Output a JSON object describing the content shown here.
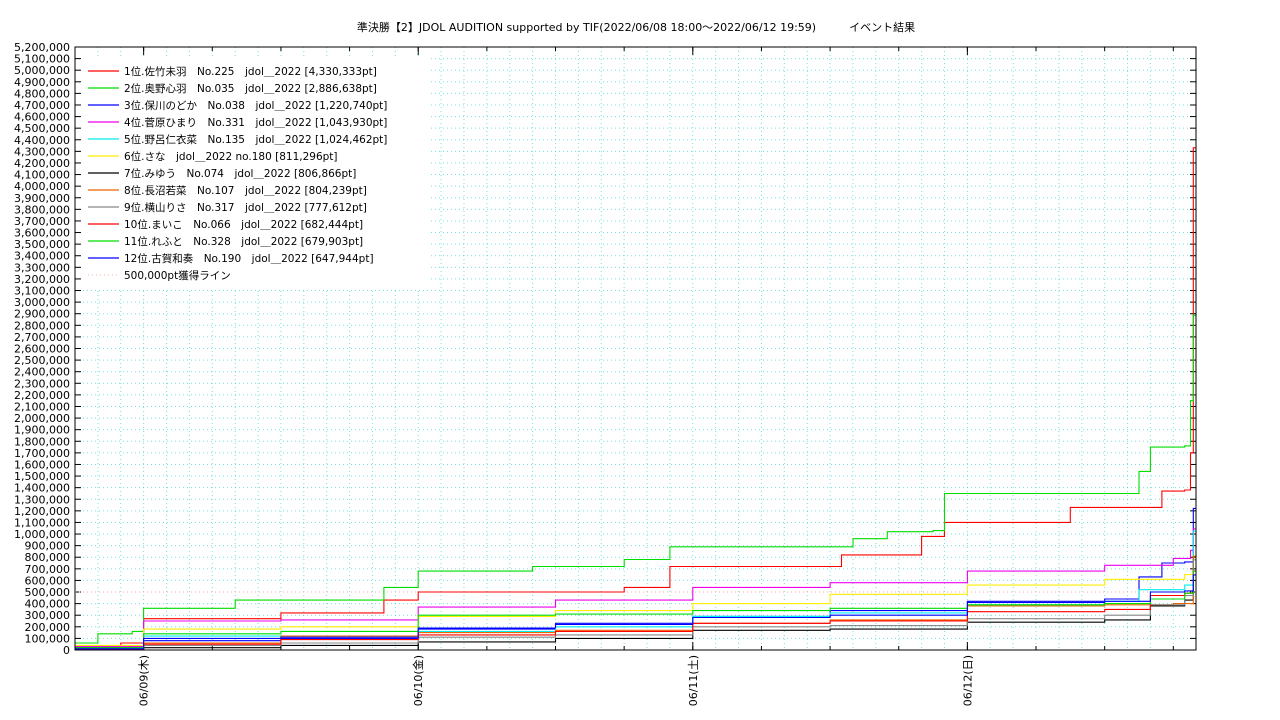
{
  "chart_data": {
    "type": "line",
    "title": "準決勝【2】JDOL AUDITION supported by TIF(2022/06/08 18:00～2022/06/12 19:59)　　　イベント結果",
    "xlabel": "",
    "ylabel": "",
    "x_range": [
      "2022-06-08 18:00",
      "2022-06-12 19:59"
    ],
    "x_ticks": [
      {
        "x": "2022-06-09 00:00",
        "label": "06/09(木)"
      },
      {
        "x": "2022-06-10 00:00",
        "label": "06/10(金)"
      },
      {
        "x": "2022-06-11 00:00",
        "label": "06/11(土)"
      },
      {
        "x": "2022-06-12 00:00",
        "label": "06/12(日)"
      }
    ],
    "ylim": [
      0,
      5200000
    ],
    "y_ticks": [
      "0",
      "100,000",
      "200,000",
      "300,000",
      "400,000",
      "500,000",
      "600,000",
      "700,000",
      "800,000",
      "900,000",
      "1,000,000",
      "1,100,000",
      "1,200,000",
      "1,300,000",
      "1,400,000",
      "1,500,000",
      "1,600,000",
      "1,700,000",
      "1,800,000",
      "1,900,000",
      "2,000,000",
      "2,100,000",
      "2,200,000",
      "2,300,000",
      "2,400,000",
      "2,500,000",
      "2,600,000",
      "2,700,000",
      "2,800,000",
      "2,900,000",
      "3,000,000",
      "3,100,000",
      "3,200,000",
      "3,300,000",
      "3,400,000",
      "3,500,000",
      "3,600,000",
      "3,700,000",
      "3,800,000",
      "3,900,000",
      "4,000,000",
      "4,100,000",
      "4,200,000",
      "4,300,000",
      "4,400,000",
      "4,500,000",
      "4,600,000",
      "4,700,000",
      "4,800,000",
      "4,900,000",
      "5,000,000",
      "5,100,000",
      "5,200,000"
    ],
    "grid": true,
    "legend_position": "top-left",
    "threshold": {
      "name": "500,000pt獲得ライン",
      "y": 500000,
      "color": "#ffaaaa"
    },
    "series": [
      {
        "name": "1位.佐竹未羽　No.225　jdol＿2022 [4,330,333pt]",
        "color": "#ff0000",
        "points": [
          [
            "2022-06-08 18:00",
            20000
          ],
          [
            "2022-06-08 22:00",
            60000
          ],
          [
            "2022-06-09 00:00",
            270000
          ],
          [
            "2022-06-09 06:00",
            270000
          ],
          [
            "2022-06-09 12:00",
            320000
          ],
          [
            "2022-06-09 20:00",
            320000
          ],
          [
            "2022-06-09 21:00",
            430000
          ],
          [
            "2022-06-10 00:00",
            500000
          ],
          [
            "2022-06-10 18:00",
            540000
          ],
          [
            "2022-06-10 22:00",
            720000
          ],
          [
            "2022-06-11 12:00",
            720000
          ],
          [
            "2022-06-11 13:00",
            820000
          ],
          [
            "2022-06-11 19:00",
            820000
          ],
          [
            "2022-06-11 20:00",
            980000
          ],
          [
            "2022-06-11 22:00",
            1100000
          ],
          [
            "2022-06-12 08:00",
            1100000
          ],
          [
            "2022-06-12 09:00",
            1230000
          ],
          [
            "2022-06-12 16:00",
            1230000
          ],
          [
            "2022-06-12 17:00",
            1370000
          ],
          [
            "2022-06-12 19:00",
            1380000
          ],
          [
            "2022-06-12 19:30",
            1700000
          ],
          [
            "2022-06-12 19:45",
            4330333
          ],
          [
            "2022-06-12 19:59",
            4330333
          ]
        ]
      },
      {
        "name": "2位.奥野心羽　No.035　jdol＿2022 [2,886,638pt]",
        "color": "#00dd00",
        "points": [
          [
            "2022-06-08 18:00",
            60000
          ],
          [
            "2022-06-08 20:00",
            140000
          ],
          [
            "2022-06-08 23:00",
            160000
          ],
          [
            "2022-06-09 00:00",
            360000
          ],
          [
            "2022-06-09 06:00",
            360000
          ],
          [
            "2022-06-09 08:00",
            430000
          ],
          [
            "2022-06-09 20:00",
            430000
          ],
          [
            "2022-06-09 21:00",
            540000
          ],
          [
            "2022-06-10 00:00",
            680000
          ],
          [
            "2022-06-10 10:00",
            720000
          ],
          [
            "2022-06-10 18:00",
            780000
          ],
          [
            "2022-06-10 22:00",
            890000
          ],
          [
            "2022-06-11 12:00",
            890000
          ],
          [
            "2022-06-11 14:00",
            960000
          ],
          [
            "2022-06-11 17:00",
            1020000
          ],
          [
            "2022-06-11 21:00",
            1030000
          ],
          [
            "2022-06-11 22:00",
            1350000
          ],
          [
            "2022-06-12 14:00",
            1350000
          ],
          [
            "2022-06-12 15:00",
            1540000
          ],
          [
            "2022-06-12 16:00",
            1750000
          ],
          [
            "2022-06-12 19:00",
            1760000
          ],
          [
            "2022-06-12 19:30",
            2150000
          ],
          [
            "2022-06-12 19:45",
            2886638
          ],
          [
            "2022-06-12 19:59",
            2886638
          ]
        ]
      },
      {
        "name": "3位.保川のどか　No.038　jdol＿2022 [1,220,740pt]",
        "color": "#0000ff",
        "points": [
          [
            "2022-06-08 18:00",
            20000
          ],
          [
            "2022-06-09 00:00",
            80000
          ],
          [
            "2022-06-09 12:00",
            100000
          ],
          [
            "2022-06-10 00:00",
            180000
          ],
          [
            "2022-06-10 12:00",
            230000
          ],
          [
            "2022-06-11 00:00",
            290000
          ],
          [
            "2022-06-11 12:00",
            340000
          ],
          [
            "2022-06-12 00:00",
            420000
          ],
          [
            "2022-06-12 12:00",
            440000
          ],
          [
            "2022-06-12 15:00",
            630000
          ],
          [
            "2022-06-12 17:00",
            750000
          ],
          [
            "2022-06-12 19:00",
            760000
          ],
          [
            "2022-06-12 19:45",
            1220740
          ],
          [
            "2022-06-12 19:59",
            1220740
          ]
        ]
      },
      {
        "name": "4位.菅原ひまり　No.331　jdol＿2022 [1,043,930pt]",
        "color": "#ee00ee",
        "points": [
          [
            "2022-06-08 18:00",
            30000
          ],
          [
            "2022-06-09 00:00",
            250000
          ],
          [
            "2022-06-09 12:00",
            260000
          ],
          [
            "2022-06-10 00:00",
            370000
          ],
          [
            "2022-06-10 12:00",
            430000
          ],
          [
            "2022-06-11 00:00",
            540000
          ],
          [
            "2022-06-11 12:00",
            580000
          ],
          [
            "2022-06-12 00:00",
            680000
          ],
          [
            "2022-06-12 12:00",
            730000
          ],
          [
            "2022-06-12 18:00",
            790000
          ],
          [
            "2022-06-12 19:30",
            860000
          ],
          [
            "2022-06-12 19:45",
            1043930
          ],
          [
            "2022-06-12 19:59",
            1043930
          ]
        ]
      },
      {
        "name": "5位.野呂仁衣菜　No.135　jdol＿2022 [1,024,462pt]",
        "color": "#00eeee",
        "points": [
          [
            "2022-06-08 18:00",
            10000
          ],
          [
            "2022-06-09 00:00",
            120000
          ],
          [
            "2022-06-10 00:00",
            160000
          ],
          [
            "2022-06-10 12:00",
            200000
          ],
          [
            "2022-06-11 00:00",
            290000
          ],
          [
            "2022-06-11 12:00",
            320000
          ],
          [
            "2022-06-12 00:00",
            390000
          ],
          [
            "2022-06-12 12:00",
            420000
          ],
          [
            "2022-06-12 15:00",
            520000
          ],
          [
            "2022-06-12 19:00",
            560000
          ],
          [
            "2022-06-12 19:45",
            1024462
          ],
          [
            "2022-06-12 19:59",
            1024462
          ]
        ]
      },
      {
        "name": "6位.さな　jdol＿2022 no.180 [811,296pt]",
        "color": "#ffee00",
        "points": [
          [
            "2022-06-08 18:00",
            40000
          ],
          [
            "2022-06-09 00:00",
            180000
          ],
          [
            "2022-06-09 12:00",
            200000
          ],
          [
            "2022-06-10 00:00",
            290000
          ],
          [
            "2022-06-10 12:00",
            340000
          ],
          [
            "2022-06-11 00:00",
            400000
          ],
          [
            "2022-06-11 12:00",
            480000
          ],
          [
            "2022-06-12 00:00",
            560000
          ],
          [
            "2022-06-12 12:00",
            610000
          ],
          [
            "2022-06-12 19:00",
            650000
          ],
          [
            "2022-06-12 19:45",
            811296
          ],
          [
            "2022-06-12 19:59",
            811296
          ]
        ]
      },
      {
        "name": "7位.みゆう　No.074　jdol＿2022 [806,866pt]",
        "color": "#000000",
        "points": [
          [
            "2022-06-08 18:00",
            5000
          ],
          [
            "2022-06-09 00:00",
            20000
          ],
          [
            "2022-06-09 12:00",
            40000
          ],
          [
            "2022-06-10 00:00",
            70000
          ],
          [
            "2022-06-10 12:00",
            100000
          ],
          [
            "2022-06-11 00:00",
            170000
          ],
          [
            "2022-06-11 12:00",
            180000
          ],
          [
            "2022-06-12 00:00",
            240000
          ],
          [
            "2022-06-12 12:00",
            260000
          ],
          [
            "2022-06-12 16:00",
            380000
          ],
          [
            "2022-06-12 19:00",
            430000
          ],
          [
            "2022-06-12 19:45",
            806866
          ],
          [
            "2022-06-12 19:59",
            806866
          ]
        ]
      },
      {
        "name": "8位.長沼若菜　No.107　jdol＿2022 [804,239pt]",
        "color": "#ee6600",
        "points": [
          [
            "2022-06-08 18:00",
            10000
          ],
          [
            "2022-06-09 00:00",
            60000
          ],
          [
            "2022-06-09 12:00",
            120000
          ],
          [
            "2022-06-10 00:00",
            150000
          ],
          [
            "2022-06-10 12:00",
            170000
          ],
          [
            "2022-06-11 00:00",
            230000
          ],
          [
            "2022-06-11 12:00",
            260000
          ],
          [
            "2022-06-12 00:00",
            380000
          ],
          [
            "2022-06-12 12:00",
            390000
          ],
          [
            "2022-06-12 18:00",
            400000
          ],
          [
            "2022-06-12 19:45",
            804239
          ],
          [
            "2022-06-12 19:59",
            804239
          ]
        ]
      },
      {
        "name": "9位.横山りさ　No.317　jdol＿2022 [777,612pt]",
        "color": "#888888",
        "points": [
          [
            "2022-06-08 18:00",
            5000
          ],
          [
            "2022-06-09 00:00",
            40000
          ],
          [
            "2022-06-09 12:00",
            60000
          ],
          [
            "2022-06-10 00:00",
            110000
          ],
          [
            "2022-06-10 12:00",
            130000
          ],
          [
            "2022-06-11 00:00",
            200000
          ],
          [
            "2022-06-11 12:00",
            210000
          ],
          [
            "2022-06-12 00:00",
            270000
          ],
          [
            "2022-06-12 12:00",
            300000
          ],
          [
            "2022-06-12 16:00",
            390000
          ],
          [
            "2022-06-12 19:00",
            470000
          ],
          [
            "2022-06-12 19:45",
            777612
          ],
          [
            "2022-06-12 19:59",
            777612
          ]
        ]
      },
      {
        "name": "10位.まいこ　No.066　jdol＿2022 [682,444pt]",
        "color": "#ff0000",
        "points": [
          [
            "2022-06-08 18:00",
            5000
          ],
          [
            "2022-06-09 00:00",
            50000
          ],
          [
            "2022-06-09 12:00",
            90000
          ],
          [
            "2022-06-10 00:00",
            130000
          ],
          [
            "2022-06-10 12:00",
            160000
          ],
          [
            "2022-06-11 00:00",
            230000
          ],
          [
            "2022-06-11 12:00",
            250000
          ],
          [
            "2022-06-12 00:00",
            330000
          ],
          [
            "2022-06-12 12:00",
            350000
          ],
          [
            "2022-06-12 16:00",
            470000
          ],
          [
            "2022-06-12 19:00",
            490000
          ],
          [
            "2022-06-12 19:45",
            682444
          ],
          [
            "2022-06-12 19:59",
            682444
          ]
        ]
      },
      {
        "name": "11位.れふと　No.328　jdol＿2022 [679,903pt]",
        "color": "#00dd00",
        "points": [
          [
            "2022-06-08 18:00",
            20000
          ],
          [
            "2022-06-09 00:00",
            140000
          ],
          [
            "2022-06-09 12:00",
            160000
          ],
          [
            "2022-06-10 00:00",
            300000
          ],
          [
            "2022-06-10 12:00",
            310000
          ],
          [
            "2022-06-11 00:00",
            340000
          ],
          [
            "2022-06-11 12:00",
            360000
          ],
          [
            "2022-06-12 00:00",
            390000
          ],
          [
            "2022-06-12 12:00",
            400000
          ],
          [
            "2022-06-12 16:00",
            440000
          ],
          [
            "2022-06-12 19:00",
            490000
          ],
          [
            "2022-06-12 19:45",
            679903
          ],
          [
            "2022-06-12 19:59",
            679903
          ]
        ]
      },
      {
        "name": "12位.古賀和奏　No.190　jdol＿2022 [647,944pt]",
        "color": "#0000ff",
        "points": [
          [
            "2022-06-08 18:00",
            10000
          ],
          [
            "2022-06-09 00:00",
            100000
          ],
          [
            "2022-06-09 12:00",
            110000
          ],
          [
            "2022-06-10 00:00",
            190000
          ],
          [
            "2022-06-10 12:00",
            220000
          ],
          [
            "2022-06-11 00:00",
            280000
          ],
          [
            "2022-06-11 12:00",
            300000
          ],
          [
            "2022-06-12 00:00",
            410000
          ],
          [
            "2022-06-12 12:00",
            420000
          ],
          [
            "2022-06-12 16:00",
            500000
          ],
          [
            "2022-06-12 19:00",
            510000
          ],
          [
            "2022-06-12 19:45",
            647944
          ],
          [
            "2022-06-12 19:59",
            647944
          ]
        ]
      }
    ]
  }
}
